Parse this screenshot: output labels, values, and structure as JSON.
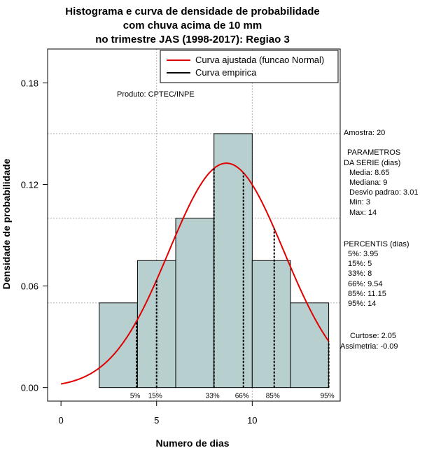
{
  "chart_data": {
    "type": "bar",
    "title_lines": [
      "Histograma e curva de densidade de probabilidade",
      "com chuva acima de 10 mm",
      "no trimestre JAS (1998-2017): Regiao 3"
    ],
    "xlabel": "Numero de dias",
    "ylabel": "Densidade de probabilidade",
    "xlim": [
      -0.7,
      14.6
    ],
    "ylim": [
      -0.008,
      0.2
    ],
    "x_ticks": [
      0,
      5,
      10
    ],
    "y_ticks": [
      0.0,
      0.06,
      0.12,
      0.18
    ],
    "y_tick_labels": [
      "0.00",
      "0.06",
      "0.12",
      "0.18"
    ],
    "grid": true,
    "grid_x": [
      5,
      10
    ],
    "grid_y": [
      0.05,
      0.1,
      0.15
    ],
    "bins": [
      {
        "from": 2,
        "to": 4,
        "density": 0.05
      },
      {
        "from": 4,
        "to": 6,
        "density": 0.075
      },
      {
        "from": 6,
        "to": 8,
        "density": 0.1
      },
      {
        "from": 8,
        "to": 10,
        "density": 0.15
      },
      {
        "from": 10,
        "to": 12,
        "density": 0.075
      },
      {
        "from": 12,
        "to": 14,
        "density": 0.05
      }
    ],
    "bar_color": "#b7cfcf",
    "normal_curve": {
      "mean": 8.65,
      "sd": 3.01,
      "from": 0,
      "to": 14,
      "color": "#e00000"
    },
    "percentile_lines": [
      {
        "label": "5%",
        "x": 3.95
      },
      {
        "label": "15%",
        "x": 5
      },
      {
        "label": "33%",
        "x": 8
      },
      {
        "label": "66%",
        "x": 9.54
      },
      {
        "label": "85%",
        "x": 11.15
      },
      {
        "label": "95%",
        "x": 14
      }
    ],
    "legend": {
      "placement": "top-right",
      "entries": [
        {
          "label": "Curva ajustada (funcao Normal)",
          "color": "#e00000"
        },
        {
          "label": "Curva empirica",
          "color": "#000000"
        }
      ]
    },
    "product_note": "Produto: CPTEC/INPE",
    "stats_lines": [
      "Amostra: 20",
      "PARAMETROS",
      "DA SERIE (dias)",
      "Media: 8.65",
      "Mediana: 9",
      "Desvio padrao: 3.01",
      "Min: 3",
      "Max: 14",
      "PERCENTIS (dias)",
      "5%: 3.95",
      "15%: 5",
      "33%: 8",
      "66%: 9.54",
      "85%: 11.15",
      "95%: 14",
      "Curtose: 2.05",
      "Assimetria: -0.09"
    ]
  }
}
